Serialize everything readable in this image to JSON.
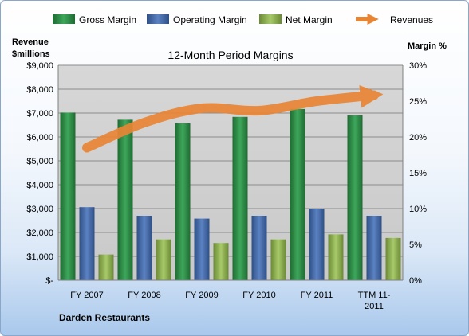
{
  "chart_data": {
    "type": "bar",
    "title": "12-Month Period Margins",
    "left_axis_label": [
      "Revenue",
      "$millions"
    ],
    "right_axis_label": "Margin %",
    "company": "Darden Restaurants",
    "categories": [
      [
        "FY 2007"
      ],
      [
        "FY 2008"
      ],
      [
        "FY 2009"
      ],
      [
        "FY 2010"
      ],
      [
        "FY 2011"
      ],
      [
        "TTM 11-",
        "2011"
      ]
    ],
    "left_ticks": [
      "$-",
      "$1,000",
      "$2,000",
      "$3,000",
      "$4,000",
      "$5,000",
      "$6,000",
      "$7,000",
      "$8,000",
      "$9,000"
    ],
    "right_ticks": [
      "0%",
      "5%",
      "10%",
      "15%",
      "20%",
      "25%",
      "30%"
    ],
    "left_range": [
      0,
      9000
    ],
    "right_range": [
      0,
      30
    ],
    "grid": true,
    "legend_position": "top",
    "series": [
      {
        "name": "Gross Margin",
        "type": "bar",
        "axis": "right",
        "color": "#2e8b46",
        "values": [
          23.4,
          22.4,
          21.9,
          22.8,
          23.9,
          23.0
        ]
      },
      {
        "name": "Operating Margin",
        "type": "bar",
        "axis": "right",
        "color": "#4a6fae",
        "values": [
          10.2,
          9.0,
          8.6,
          9.0,
          10.0,
          9.0
        ]
      },
      {
        "name": "Net Margin",
        "type": "bar",
        "axis": "right",
        "color": "#98b95a",
        "values": [
          3.6,
          5.7,
          5.2,
          5.7,
          6.4,
          5.9
        ]
      },
      {
        "name": "Revenues",
        "type": "line",
        "axis": "left",
        "color": "#e88535",
        "values": [
          5550,
          6600,
          7200,
          7100,
          7500,
          7750
        ]
      }
    ]
  }
}
